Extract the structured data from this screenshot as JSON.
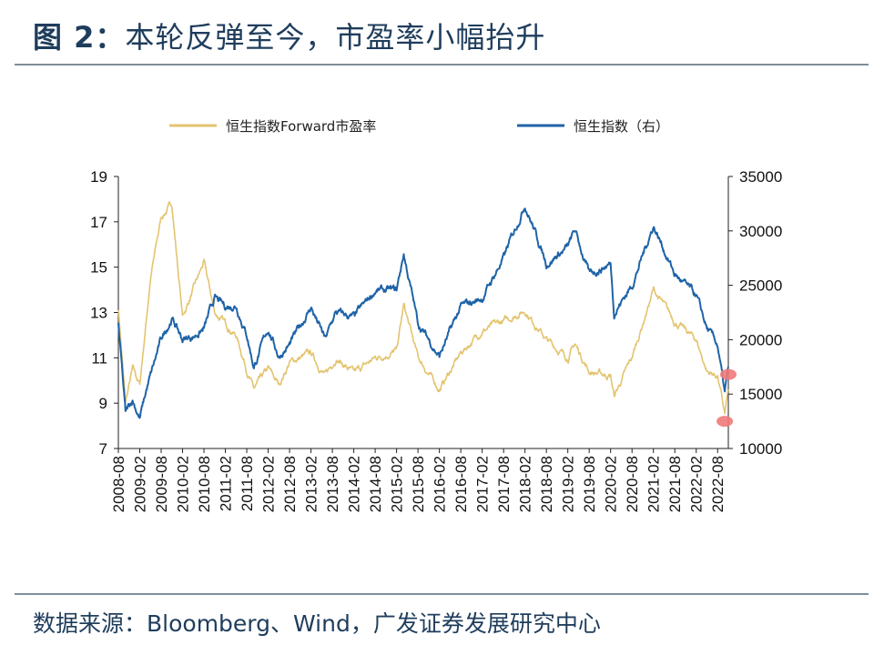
{
  "title": {
    "label": "图 2：",
    "text": "本轮反弹至今，市盈率小幅抬升"
  },
  "source": "数据来源：Bloomberg、Wind，广发证券发展研究中心",
  "colors": {
    "pe": "#e3c46f",
    "hsi": "#1f63a7",
    "marker": "#f07a7a",
    "rule": "#7f8d9a"
  },
  "chart_data": {
    "type": "line",
    "x_ticks": [
      "2008-08",
      "2009-02",
      "2009-08",
      "2010-02",
      "2010-08",
      "2011-02",
      "2011-08",
      "2012-02",
      "2012-08",
      "2013-02",
      "2013-08",
      "2014-02",
      "2014-08",
      "2015-02",
      "2015-08",
      "2016-02",
      "2016-08",
      "2017-02",
      "2017-08",
      "2018-02",
      "2018-08",
      "2019-02",
      "2019-08",
      "2020-02",
      "2020-08",
      "2021-02",
      "2021-08",
      "2022-02",
      "2022-08"
    ],
    "y_left": {
      "ticks": [
        7,
        9,
        11,
        13,
        15,
        17,
        19
      ],
      "range": [
        7,
        19
      ]
    },
    "y_right": {
      "ticks": [
        10000,
        15000,
        20000,
        25000,
        30000,
        35000
      ],
      "range": [
        10000,
        35000
      ]
    },
    "series": [
      {
        "name": "恒生指数Forward市盈率",
        "axis": "left",
        "color": "#e3c46f",
        "anchors": [
          [
            "2008-08",
            13.2
          ],
          [
            "2008-10",
            9.0
          ],
          [
            "2008-12",
            10.5
          ],
          [
            "2009-02",
            9.8
          ],
          [
            "2009-05",
            14.5
          ],
          [
            "2009-08",
            17.2
          ],
          [
            "2009-11",
            17.8
          ],
          [
            "2010-02",
            12.8
          ],
          [
            "2010-05",
            14.0
          ],
          [
            "2010-08",
            15.2
          ],
          [
            "2010-11",
            13.0
          ],
          [
            "2011-02",
            12.5
          ],
          [
            "2011-05",
            12.0
          ],
          [
            "2011-08",
            10.5
          ],
          [
            "2011-10",
            9.6
          ],
          [
            "2012-02",
            10.5
          ],
          [
            "2012-05",
            9.8
          ],
          [
            "2012-08",
            10.8
          ],
          [
            "2013-02",
            11.2
          ],
          [
            "2013-06",
            10.2
          ],
          [
            "2013-09",
            11.0
          ],
          [
            "2014-02",
            10.3
          ],
          [
            "2014-08",
            11.0
          ],
          [
            "2015-02",
            11.3
          ],
          [
            "2015-04",
            13.3
          ],
          [
            "2015-08",
            11.0
          ],
          [
            "2016-02",
            9.6
          ],
          [
            "2016-08",
            11.2
          ],
          [
            "2017-02",
            12.2
          ],
          [
            "2017-08",
            12.6
          ],
          [
            "2018-02",
            13.1
          ],
          [
            "2018-08",
            11.8
          ],
          [
            "2019-02",
            11.0
          ],
          [
            "2019-04",
            11.6
          ],
          [
            "2019-08",
            10.4
          ],
          [
            "2020-02",
            10.2
          ],
          [
            "2020-03",
            9.3
          ],
          [
            "2020-08",
            11.0
          ],
          [
            "2021-02",
            14.0
          ],
          [
            "2021-08",
            12.6
          ],
          [
            "2022-02",
            11.8
          ],
          [
            "2022-05",
            10.4
          ],
          [
            "2022-08",
            10.2
          ],
          [
            "2022-10",
            8.5
          ],
          [
            "2022-11",
            9.6
          ]
        ]
      },
      {
        "name": "恒生指数（右）",
        "axis": "right",
        "color": "#1f63a7",
        "anchors": [
          [
            "2008-08",
            21500
          ],
          [
            "2008-10",
            13200
          ],
          [
            "2008-12",
            14500
          ],
          [
            "2009-02",
            12800
          ],
          [
            "2009-04",
            15500
          ],
          [
            "2009-08",
            20000
          ],
          [
            "2009-11",
            22000
          ],
          [
            "2010-02",
            20000
          ],
          [
            "2010-05",
            20300
          ],
          [
            "2010-08",
            21000
          ],
          [
            "2010-11",
            23800
          ],
          [
            "2011-02",
            23000
          ],
          [
            "2011-05",
            23200
          ],
          [
            "2011-08",
            20500
          ],
          [
            "2011-10",
            17500
          ],
          [
            "2012-02",
            21000
          ],
          [
            "2012-05",
            18500
          ],
          [
            "2012-08",
            19500
          ],
          [
            "2013-02",
            23000
          ],
          [
            "2013-06",
            20000
          ],
          [
            "2013-09",
            22500
          ],
          [
            "2014-02",
            22000
          ],
          [
            "2014-08",
            24500
          ],
          [
            "2015-02",
            24500
          ],
          [
            "2015-04",
            27900
          ],
          [
            "2015-08",
            21500
          ],
          [
            "2016-02",
            18500
          ],
          [
            "2016-08",
            23000
          ],
          [
            "2017-02",
            23800
          ],
          [
            "2017-08",
            27500
          ],
          [
            "2018-02",
            32500
          ],
          [
            "2018-08",
            27000
          ],
          [
            "2019-02",
            28500
          ],
          [
            "2019-04",
            30000
          ],
          [
            "2019-08",
            26000
          ],
          [
            "2020-02",
            27000
          ],
          [
            "2020-03",
            22500
          ],
          [
            "2020-08",
            25000
          ],
          [
            "2021-02",
            30500
          ],
          [
            "2021-08",
            26000
          ],
          [
            "2022-02",
            24000
          ],
          [
            "2022-05",
            21000
          ],
          [
            "2022-08",
            19500
          ],
          [
            "2022-10",
            15000
          ],
          [
            "2022-11",
            17500
          ]
        ]
      }
    ],
    "markers": [
      {
        "axis": "right",
        "x": "2022-11",
        "y": 16800
      },
      {
        "axis": "left",
        "x": "2022-10",
        "y": 8.2
      }
    ],
    "legend_position": "top"
  }
}
